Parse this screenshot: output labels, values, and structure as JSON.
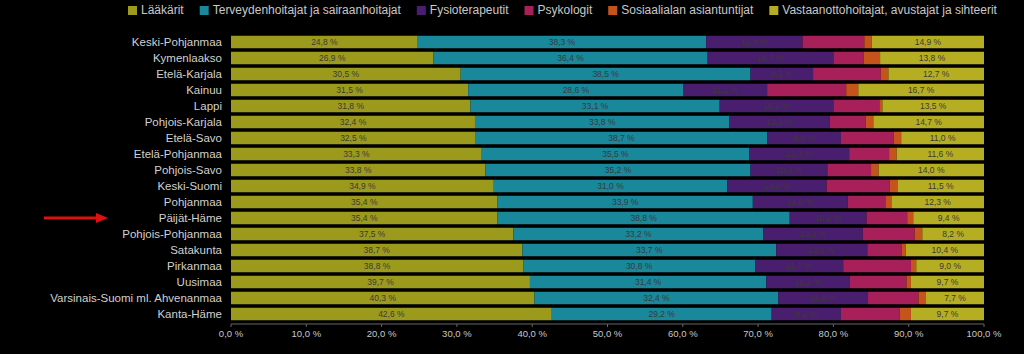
{
  "chart_data": {
    "type": "bar",
    "orientation": "horizontal",
    "stacked": true,
    "grid": false,
    "legend": "top",
    "categories": [
      "Keski-Pohjanmaa",
      "Kymenlaakso",
      "Etelä-Karjala",
      "Kainuu",
      "Lappi",
      "Pohjois-Karjala",
      "Etelä-Savo",
      "Etelä-Pohjanmaa",
      "Pohjois-Savo",
      "Keski-Suomi",
      "Pohjanmaa",
      "Päijät-Häme",
      "Pohjois-Pohjanmaa",
      "Satakunta",
      "Pirkanmaa",
      "Uusimaa",
      "Varsinais-Suomi ml. Ahvenanmaa",
      "Kanta-Häme"
    ],
    "xlim": [
      0,
      100
    ],
    "xticks": [
      {
        "value": 0,
        "label": "0,0 %"
      },
      {
        "value": 10,
        "label": "10,0 %"
      },
      {
        "value": 20,
        "label": "20,0 %"
      },
      {
        "value": 30,
        "label": "30,0 %"
      },
      {
        "value": 40,
        "label": "40,0 %"
      },
      {
        "value": 50,
        "label": "50,0 %"
      },
      {
        "value": 60,
        "label": "60,0 %"
      },
      {
        "value": 70,
        "label": "70,0 %"
      },
      {
        "value": 80,
        "label": "80,0 %"
      },
      {
        "value": 90,
        "label": "90,0 %"
      },
      {
        "value": 100,
        "label": "100,0 %"
      }
    ],
    "series": [
      {
        "name": "Lääkärit",
        "color": "#9c9a1c",
        "data_labels": true,
        "values": [
          24.8,
          26.9,
          30.5,
          31.5,
          31.8,
          32.4,
          32.5,
          33.3,
          33.8,
          34.9,
          35.4,
          35.4,
          37.5,
          38.7,
          38.8,
          39.7,
          40.3,
          42.6
        ],
        "value_labels": [
          "24,8 %",
          "26,9 %",
          "30,5 %",
          "31,5 %",
          "31,8 %",
          "32,4 %",
          "32,5 %",
          "33,3 %",
          "33,8 %",
          "34,9 %",
          "35,4 %",
          "35,4 %",
          "37,5 %",
          "38,7 %",
          "38,8 %",
          "39,7 %",
          "40,3 %",
          "42,6 %"
        ]
      },
      {
        "name": "Terveydenhoitajat ja sairaanhoitajat",
        "color": "#18889a",
        "data_labels": true,
        "values": [
          38.3,
          36.4,
          38.5,
          28.6,
          33.1,
          33.8,
          38.7,
          35.5,
          35.2,
          31.0,
          33.9,
          38.8,
          33.2,
          33.7,
          30.8,
          31.4,
          32.4,
          29.2
        ],
        "value_labels": [
          "38,3 %",
          "36,4 %",
          "38,5 %",
          "28,6 %",
          "33,1 %",
          "33,8 %",
          "38,7 %",
          "35,5 %",
          "35,2 %",
          "31,0 %",
          "33,9 %",
          "38,8 %",
          "33,2 %",
          "33,7 %",
          "30,8 %",
          "31,4 %",
          "32,4 %",
          "29,2 %"
        ]
      },
      {
        "name": "Fysioterapeutit",
        "color": "#4a1e6e",
        "data_labels": true,
        "values": [
          12.8,
          16.7,
          8.3,
          11.1,
          15.1,
          13.3,
          9.8,
          13.3,
          10.2,
          13.2,
          12.6,
          10.2,
          13.2,
          12.1,
          11.7,
          11.1,
          11.9,
          9.2
        ],
        "value_labels": [
          "12,8 %",
          "16,7 %",
          "8,3 %",
          "11,1 %",
          "15,1 %",
          "13,3 %",
          "9,8 %",
          "13,3 %",
          "10,2 %",
          "13,2 %",
          "12,6 %",
          "10,2 %",
          "13,2 %",
          "12,1 %",
          "11,7 %",
          "11,1 %",
          "11,9 %",
          "9,2 %"
        ]
      },
      {
        "name": "Psykologit",
        "color": "#a8205a",
        "data_labels": false,
        "values": [
          8.2,
          4.0,
          9.0,
          10.5,
          6.1,
          4.8,
          7.0,
          5.3,
          5.8,
          8.4,
          5.0,
          5.4,
          6.9,
          4.6,
          9.0,
          7.5,
          6.7,
          7.8
        ]
      },
      {
        "name": "Sosiaalialan asiantuntijat",
        "color": "#c4541c",
        "data_labels": false,
        "values": [
          1.0,
          2.2,
          1.0,
          1.6,
          0.4,
          1.0,
          1.0,
          1.0,
          1.0,
          1.0,
          0.8,
          0.8,
          1.0,
          0.5,
          0.7,
          0.6,
          1.0,
          1.5
        ]
      },
      {
        "name": "Vastaanottohoitajat, avustajat ja sihteerit",
        "color": "#b6ae22",
        "data_labels": true,
        "values": [
          14.9,
          13.8,
          12.7,
          16.7,
          13.5,
          14.7,
          11.0,
          11.6,
          14.0,
          11.5,
          12.3,
          9.4,
          8.2,
          10.4,
          9.0,
          9.7,
          7.7,
          9.7
        ],
        "value_labels": [
          "14,9 %",
          "13,8 %",
          "12,7 %",
          "16,7 %",
          "13,5 %",
          "14,7 %",
          "11,0 %",
          "11,6 %",
          "14,0 %",
          "11,5 %",
          "12,3 %",
          "9,4 %",
          "8,2 %",
          "10,4 %",
          "9,0 %",
          "9,7 %",
          "7,7 %",
          "9,7 %"
        ]
      }
    ]
  }
}
